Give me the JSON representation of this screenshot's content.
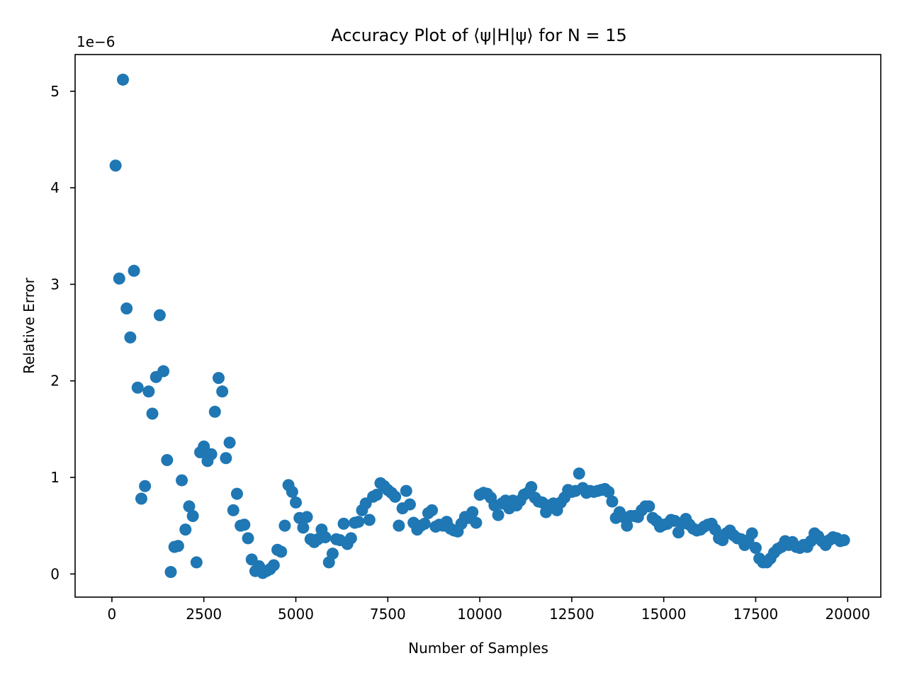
{
  "chart_data": {
    "type": "scatter",
    "title": "Accuracy Plot of ⟨ψ|H|ψ⟩ for N = 15",
    "xlabel": "Number of Samples",
    "ylabel": "Relative Error",
    "y_offset_label": "1e−6",
    "y_scale_factor": 1e-06,
    "xlim": [
      -1000,
      20900
    ],
    "ylim": [
      -0.24,
      5.38
    ],
    "x_ticks": [
      0,
      2500,
      5000,
      7500,
      10000,
      12500,
      15000,
      17500,
      20000
    ],
    "x_tick_labels": [
      "0",
      "2500",
      "5000",
      "7500",
      "10000",
      "12500",
      "15000",
      "17500",
      "20000"
    ],
    "y_ticks": [
      0,
      1,
      2,
      3,
      4,
      5
    ],
    "y_tick_labels": [
      "0",
      "1",
      "2",
      "3",
      "4",
      "5"
    ],
    "grid": false,
    "marker_color": "#1f77b4",
    "series": [
      {
        "x": [
          100,
          200,
          300,
          400,
          500,
          600,
          700,
          800,
          900,
          1000,
          1100,
          1200,
          1300,
          1400,
          1500,
          1600,
          1700,
          1800,
          1900,
          2000,
          2100,
          2200,
          2300,
          2400,
          2500,
          2600,
          2700,
          2800,
          2900,
          3000,
          3100,
          3200,
          3300,
          3400,
          3500,
          3600,
          3700,
          3800,
          3900,
          4000,
          4100,
          4200,
          4300,
          4400,
          4500,
          4600,
          4700,
          4800,
          4900,
          5000,
          5100,
          5200,
          5300,
          5400,
          5500,
          5600,
          5700,
          5800,
          5900,
          6000,
          6100,
          6200,
          6300,
          6400,
          6500,
          6600,
          6700,
          6800,
          6900,
          7000,
          7100,
          7200,
          7300,
          7400,
          7500,
          7600,
          7700,
          7800,
          7900,
          8000,
          8100,
          8200,
          8300,
          8400,
          8500,
          8600,
          8700,
          8800,
          8900,
          9000,
          9100,
          9200,
          9300,
          9400,
          9500,
          9600,
          9700,
          9800,
          9900,
          10000,
          10100,
          10200,
          10300,
          10400,
          10500,
          10600,
          10700,
          10800,
          10900,
          11000,
          11100,
          11200,
          11300,
          11400,
          11500,
          11600,
          11700,
          11800,
          11900,
          12000,
          12100,
          12200,
          12300,
          12400,
          12500,
          12600,
          12700,
          12800,
          12900,
          13000,
          13100,
          13200,
          13300,
          13400,
          13500,
          13600,
          13700,
          13800,
          13900,
          14000,
          14100,
          14200,
          14300,
          14400,
          14500,
          14600,
          14700,
          14800,
          14900,
          15000,
          15100,
          15200,
          15300,
          15400,
          15500,
          15600,
          15700,
          15800,
          15900,
          16000,
          16100,
          16200,
          16300,
          16400,
          16500,
          16600,
          16700,
          16800,
          16900,
          17000,
          17100,
          17200,
          17300,
          17400,
          17500,
          17600,
          17700,
          17800,
          17900,
          18000,
          18100,
          18200,
          18300,
          18400,
          18500,
          18600,
          18700,
          18800,
          18900,
          19000,
          19100,
          19200,
          19300,
          19400,
          19500,
          19600,
          19700,
          19800,
          19900
        ],
        "y": [
          4.23,
          3.06,
          5.12,
          2.75,
          2.45,
          3.14,
          1.93,
          0.78,
          0.91,
          1.89,
          1.66,
          2.04,
          2.68,
          2.1,
          1.18,
          0.02,
          0.28,
          0.29,
          0.97,
          0.46,
          0.7,
          0.6,
          0.12,
          1.26,
          1.32,
          1.17,
          1.24,
          1.68,
          2.03,
          1.89,
          1.2,
          1.36,
          0.66,
          0.83,
          0.5,
          0.51,
          0.37,
          0.15,
          0.03,
          0.08,
          0.01,
          0.03,
          0.05,
          0.09,
          0.25,
          0.23,
          0.5,
          0.92,
          0.85,
          0.74,
          0.58,
          0.48,
          0.59,
          0.36,
          0.33,
          0.36,
          0.46,
          0.38,
          0.12,
          0.21,
          0.36,
          0.35,
          0.52,
          0.31,
          0.37,
          0.53,
          0.54,
          0.66,
          0.73,
          0.56,
          0.8,
          0.82,
          0.94,
          0.91,
          0.87,
          0.84,
          0.8,
          0.5,
          0.68,
          0.86,
          0.72,
          0.53,
          0.46,
          0.5,
          0.52,
          0.63,
          0.66,
          0.49,
          0.51,
          0.5,
          0.54,
          0.47,
          0.45,
          0.44,
          0.52,
          0.59,
          0.58,
          0.64,
          0.53,
          0.82,
          0.84,
          0.83,
          0.79,
          0.71,
          0.61,
          0.73,
          0.76,
          0.68,
          0.76,
          0.71,
          0.76,
          0.82,
          0.84,
          0.9,
          0.79,
          0.75,
          0.74,
          0.64,
          0.71,
          0.73,
          0.66,
          0.74,
          0.79,
          0.87,
          0.85,
          0.86,
          1.04,
          0.89,
          0.84,
          0.86,
          0.85,
          0.86,
          0.87,
          0.88,
          0.85,
          0.75,
          0.58,
          0.64,
          0.59,
          0.5,
          0.6,
          0.6,
          0.59,
          0.66,
          0.7,
          0.7,
          0.58,
          0.55,
          0.49,
          0.51,
          0.52,
          0.56,
          0.55,
          0.43,
          0.52,
          0.57,
          0.51,
          0.47,
          0.45,
          0.46,
          0.49,
          0.51,
          0.52,
          0.46,
          0.37,
          0.35,
          0.42,
          0.45,
          0.4,
          0.37,
          0.36,
          0.3,
          0.35,
          0.42,
          0.27,
          0.16,
          0.12,
          0.12,
          0.16,
          0.22,
          0.26,
          0.28,
          0.34,
          0.3,
          0.33,
          0.28,
          0.27,
          0.3,
          0.28,
          0.34,
          0.42,
          0.39,
          0.34,
          0.3,
          0.35,
          0.38,
          0.37,
          0.34,
          0.35
        ]
      }
    ]
  }
}
